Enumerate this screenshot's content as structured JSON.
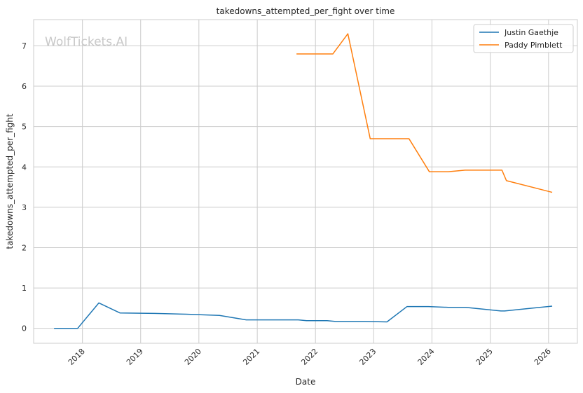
{
  "chart_data": {
    "type": "line",
    "title": "takedowns_attempted_per_fight over time",
    "xlabel": "Date",
    "ylabel": "takedowns_attempted_per_fight",
    "watermark": "WolfTickets.AI",
    "xlim": [
      "2017-03-01",
      "2026-07-01"
    ],
    "ylim": [
      -0.37,
      7.65
    ],
    "x_ticks": [
      "2018",
      "2019",
      "2020",
      "2021",
      "2022",
      "2023",
      "2024",
      "2025",
      "2026"
    ],
    "y_ticks": [
      0,
      1,
      2,
      3,
      4,
      5,
      6,
      7
    ],
    "grid": true,
    "legend_position": "top-right",
    "series": [
      {
        "name": "Justin Gaethje",
        "color": "#1f77b4",
        "points": [
          [
            "2017-07-07",
            0.0
          ],
          [
            "2017-12-02",
            0.0
          ],
          [
            "2018-04-14",
            0.63
          ],
          [
            "2018-08-25",
            0.38
          ],
          [
            "2019-03-30",
            0.37
          ],
          [
            "2019-10-12",
            0.35
          ],
          [
            "2020-05-09",
            0.32
          ],
          [
            "2020-10-24",
            0.21
          ],
          [
            "2021-04-01",
            0.21
          ],
          [
            "2021-09-15",
            0.21
          ],
          [
            "2021-11-06",
            0.19
          ],
          [
            "2022-03-15",
            0.19
          ],
          [
            "2022-05-07",
            0.17
          ],
          [
            "2022-11-10",
            0.17
          ],
          [
            "2023-03-25",
            0.16
          ],
          [
            "2023-07-29",
            0.54
          ],
          [
            "2023-12-10",
            0.54
          ],
          [
            "2024-04-13",
            0.52
          ],
          [
            "2024-07-30",
            0.52
          ],
          [
            "2025-03-08",
            0.43
          ],
          [
            "2025-04-01",
            0.43
          ],
          [
            "2026-01-24",
            0.55
          ]
        ]
      },
      {
        "name": "Paddy Pimblett",
        "color": "#ff7f0e",
        "points": [
          [
            "2021-09-04",
            6.8
          ],
          [
            "2022-02-10",
            6.8
          ],
          [
            "2022-04-20",
            6.8
          ],
          [
            "2022-07-23",
            7.3
          ],
          [
            "2022-12-10",
            4.7
          ],
          [
            "2023-08-10",
            4.7
          ],
          [
            "2023-12-16",
            3.88
          ],
          [
            "2024-04-13",
            3.88
          ],
          [
            "2024-07-27",
            3.92
          ],
          [
            "2025-03-15",
            3.92
          ],
          [
            "2025-04-12",
            3.66
          ],
          [
            "2026-01-24",
            3.37
          ]
        ]
      }
    ]
  }
}
